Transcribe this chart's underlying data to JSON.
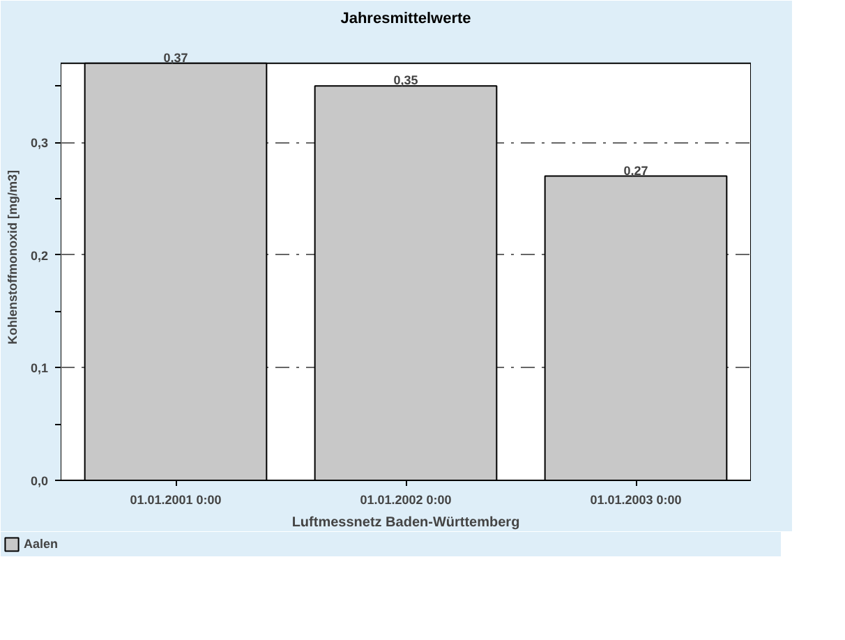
{
  "chart_data": {
    "type": "bar",
    "title": "Jahresmittelwerte",
    "ylabel": "Kohlenstoffmonoxid [mg/m3]",
    "categories": [
      "01.01.2001 0:00",
      "01.01.2002 0:00",
      "01.01.2003 0:00"
    ],
    "series": [
      {
        "name": "Aalen",
        "color": "#c8c8c8",
        "values": [
          0.37,
          0.35,
          0.27
        ],
        "value_labels": [
          "0,37",
          "0,35",
          "0,27"
        ]
      }
    ],
    "ylim": [
      0,
      0.37
    ],
    "yticks": [
      {
        "value": 0,
        "label": "0,0"
      },
      {
        "value": 0.05,
        "label": null
      },
      {
        "value": 0.1,
        "label": "0,1"
      },
      {
        "value": 0.15,
        "label": null
      },
      {
        "value": 0.2,
        "label": "0,2"
      },
      {
        "value": 0.25,
        "label": null
      },
      {
        "value": 0.3,
        "label": "0,3"
      },
      {
        "value": 0.35,
        "label": null
      }
    ],
    "grid": "y",
    "legend": "bottom left",
    "annotations": [
      "Luftmessnetz Baden-Württemberg"
    ]
  }
}
